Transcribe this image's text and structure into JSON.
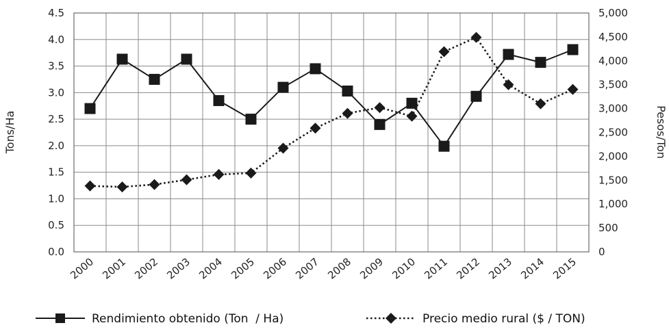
{
  "chart_data": {
    "type": "line",
    "categories": [
      "2000",
      "2001",
      "2002",
      "2003",
      "2004",
      "2005",
      "2006",
      "2007",
      "2008",
      "2009",
      "2010",
      "2011",
      "2012",
      "2013",
      "2014",
      "2015"
    ],
    "y_left": {
      "label": "Tons/Ha",
      "range": [
        0,
        4.5
      ],
      "ticks": [
        "0.0",
        "0.5",
        "1.0",
        "1.5",
        "2.0",
        "2.5",
        "3.0",
        "3.5",
        "4.0",
        "4.5"
      ]
    },
    "y_right": {
      "label": "Pesos/Ton",
      "range": [
        0,
        5000
      ],
      "ticks": [
        "0",
        "500",
        "1,000",
        "1,500",
        "2,000",
        "2,500",
        "3,000",
        "3,500",
        "4,000",
        "4,500",
        "5,000"
      ]
    },
    "grid": true,
    "legend_position": "bottom",
    "series": [
      {
        "name": "Rendimiento obtenido (Ton  / Ha)",
        "axis": "left",
        "line_style": "solid",
        "marker": "square",
        "color": "#1a1a1a",
        "values": [
          2.7,
          3.63,
          3.25,
          3.63,
          2.85,
          2.5,
          3.1,
          3.45,
          3.03,
          2.4,
          2.8,
          1.99,
          2.93,
          3.72,
          3.57,
          3.81
        ]
      },
      {
        "name": "Precio medio rural ($ / TON)",
        "axis": "right",
        "line_style": "dotted",
        "marker": "diamond",
        "color": "#1a1a1a",
        "values": [
          1380,
          1360,
          1410,
          1510,
          1620,
          1650,
          2170,
          2590,
          2900,
          3020,
          2840,
          4190,
          4490,
          3500,
          3100,
          3400
        ]
      }
    ]
  }
}
